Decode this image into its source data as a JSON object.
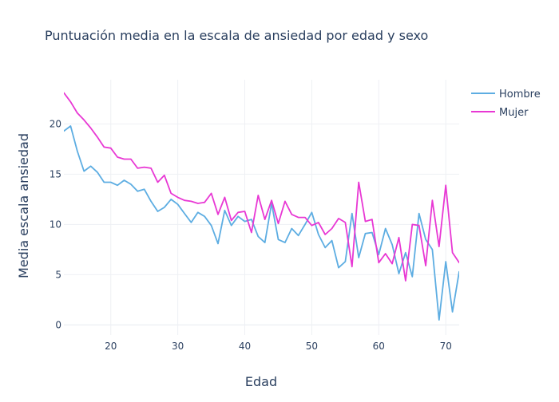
{
  "chart_data": {
    "type": "line",
    "title": "Puntuación media en la escala de ansiedad por edad y sexo",
    "xlabel": "Edad",
    "ylabel": "Media escala ansiedad",
    "xlim": [
      13,
      72
    ],
    "ylim": [
      -1,
      24.4
    ],
    "x_ticks": [
      20,
      30,
      40,
      50,
      60,
      70
    ],
    "y_ticks": [
      0,
      5,
      10,
      15,
      20
    ],
    "grid": true,
    "legend_position": "top-right",
    "x": [
      13,
      14,
      15,
      16,
      17,
      18,
      19,
      20,
      21,
      22,
      23,
      24,
      25,
      26,
      27,
      28,
      29,
      30,
      31,
      32,
      33,
      34,
      35,
      36,
      37,
      38,
      39,
      40,
      41,
      42,
      43,
      44,
      45,
      46,
      47,
      48,
      49,
      50,
      51,
      52,
      53,
      54,
      55,
      56,
      57,
      58,
      59,
      60,
      61,
      62,
      63,
      64,
      65,
      66,
      67,
      68,
      69,
      70,
      71,
      72
    ],
    "series": [
      {
        "name": "Hombre",
        "color": "#5dade2",
        "values": [
          19.3,
          19.8,
          17.3,
          15.3,
          15.8,
          15.2,
          14.2,
          14.2,
          13.9,
          14.4,
          14.0,
          13.3,
          13.5,
          12.3,
          11.3,
          11.7,
          12.5,
          12.0,
          11.1,
          10.2,
          11.2,
          10.8,
          9.9,
          8.1,
          11.4,
          9.9,
          10.8,
          10.3,
          10.5,
          8.8,
          8.2,
          12.1,
          8.5,
          8.2,
          9.6,
          8.9,
          10.0,
          11.2,
          9.0,
          7.7,
          8.4,
          5.7,
          6.3,
          11.1,
          6.7,
          9.1,
          9.2,
          7.0,
          9.6,
          8.0,
          5.1,
          7.2,
          4.8,
          11.1,
          8.5,
          7.5,
          0.5,
          6.3,
          1.3,
          5.3
        ]
      },
      {
        "name": "Mujer",
        "color": "#e838d4",
        "values": [
          23.1,
          22.2,
          21.1,
          20.4,
          19.6,
          18.7,
          17.7,
          17.6,
          16.7,
          16.5,
          16.5,
          15.6,
          15.7,
          15.6,
          14.2,
          14.9,
          13.1,
          12.7,
          12.4,
          12.3,
          12.1,
          12.2,
          13.1,
          11.0,
          12.7,
          10.4,
          11.2,
          11.3,
          9.2,
          12.9,
          10.5,
          12.4,
          10.1,
          12.3,
          11.0,
          10.7,
          10.7,
          9.9,
          10.2,
          9.0,
          9.6,
          10.6,
          10.2,
          5.8,
          14.2,
          10.3,
          10.5,
          6.2,
          7.1,
          6.1,
          8.7,
          4.4,
          10.0,
          9.9,
          5.9,
          12.4,
          7.8,
          13.9,
          7.2,
          6.2
        ]
      }
    ]
  }
}
